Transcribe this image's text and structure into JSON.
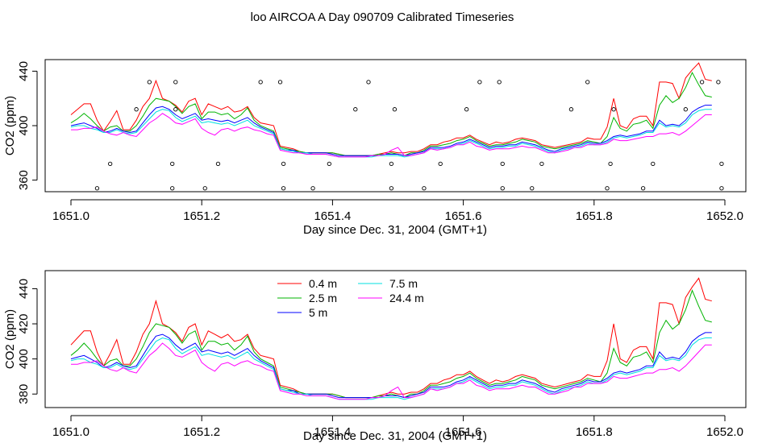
{
  "title": "loo AIRCOA A  Day 090709  Calibrated Timeseries",
  "colors": {
    "0.4 m": "#ff0000",
    "2.5 m": "#00b400",
    "5 m": "#0000ff",
    "7.5 m": "#00e0e0",
    "24.4 m": "#ff00ff"
  },
  "chart_data": [
    {
      "type": "line",
      "xlabel": "Day since Dec. 31, 2004 (GMT+1)",
      "ylabel": "CO2 (ppm)",
      "xlim": [
        1651.0,
        1652.0
      ],
      "ylim": [
        350,
        450
      ],
      "xticks": [
        "1651.0",
        "1651.2",
        "1651.4",
        "1651.6",
        "1651.8",
        "1652.0"
      ],
      "yticks": [
        "360",
        "400",
        "440"
      ],
      "overlay_points": {
        "x": [
          1651.04,
          1651.06,
          1651.1,
          1651.12,
          1651.155,
          1651.155,
          1651.16,
          1651.16,
          1651.205,
          1651.225,
          1651.29,
          1651.32,
          1651.325,
          1651.325,
          1651.37,
          1651.395,
          1651.435,
          1651.455,
          1651.49,
          1651.49,
          1651.495,
          1651.54,
          1651.565,
          1651.605,
          1651.625,
          1651.655,
          1651.66,
          1651.66,
          1651.705,
          1651.72,
          1651.765,
          1651.79,
          1651.82,
          1651.825,
          1651.83,
          1651.875,
          1651.89,
          1651.94,
          1651.965,
          1651.99,
          1651.995,
          1651.995
        ],
        "y": [
          354,
          372,
          412,
          432,
          354,
          372,
          412,
          432,
          354,
          372,
          432,
          432,
          372,
          354,
          354,
          372,
          412,
          432,
          354,
          372,
          412,
          354,
          372,
          412,
          432,
          432,
          372,
          354,
          354,
          372,
          412,
          432,
          354,
          372,
          412,
          354,
          372,
          412,
          432,
          432,
          372,
          354
        ]
      }
    },
    {
      "type": "line",
      "xlabel": "Day since Dec. 31, 2004 (GMT+1)",
      "ylabel": "CO2 (ppm)",
      "xlim": [
        1651.0,
        1652.0
      ],
      "ylim": [
        373,
        450
      ],
      "xticks": [
        "1651.0",
        "1651.2",
        "1651.4",
        "1651.6",
        "1651.8",
        "1652.0"
      ],
      "yticks": [
        "380",
        "400",
        "420",
        "440"
      ],
      "legend": [
        "0.4 m",
        "2.5 m",
        "5 m",
        "7.5 m",
        "24.4 m"
      ],
      "legend_position": "top-center"
    }
  ],
  "series": {
    "x": [
      1651.0,
      1651.01,
      1651.02,
      1651.03,
      1651.04,
      1651.05,
      1651.06,
      1651.07,
      1651.08,
      1651.09,
      1651.1,
      1651.11,
      1651.12,
      1651.13,
      1651.14,
      1651.15,
      1651.16,
      1651.17,
      1651.18,
      1651.19,
      1651.2,
      1651.21,
      1651.22,
      1651.23,
      1651.24,
      1651.25,
      1651.26,
      1651.27,
      1651.28,
      1651.29,
      1651.3,
      1651.31,
      1651.32,
      1651.33,
      1651.34,
      1651.35,
      1651.36,
      1651.37,
      1651.38,
      1651.39,
      1651.4,
      1651.41,
      1651.42,
      1651.43,
      1651.44,
      1651.45,
      1651.46,
      1651.47,
      1651.48,
      1651.49,
      1651.5,
      1651.51,
      1651.52,
      1651.53,
      1651.54,
      1651.55,
      1651.56,
      1651.57,
      1651.58,
      1651.59,
      1651.6,
      1651.61,
      1651.62,
      1651.63,
      1651.64,
      1651.65,
      1651.66,
      1651.67,
      1651.68,
      1651.69,
      1651.7,
      1651.71,
      1651.72,
      1651.73,
      1651.74,
      1651.75,
      1651.76,
      1651.77,
      1651.78,
      1651.79,
      1651.8,
      1651.81,
      1651.82,
      1651.83,
      1651.84,
      1651.85,
      1651.86,
      1651.87,
      1651.88,
      1651.89,
      1651.9,
      1651.91,
      1651.92,
      1651.93,
      1651.94,
      1651.95,
      1651.96,
      1651.97,
      1651.98
    ],
    "values": {
      "0.4 m": [
        408,
        412,
        416,
        416,
        404,
        396,
        403,
        411,
        397,
        397,
        404,
        414,
        420,
        433,
        420,
        418,
        415,
        410,
        418,
        420,
        408,
        416,
        414,
        412,
        414,
        410,
        411,
        414,
        406,
        402,
        401,
        400,
        385,
        384,
        383,
        381,
        380,
        380,
        380,
        380,
        380,
        379,
        378,
        378,
        378,
        378,
        378,
        379,
        380,
        381,
        380,
        380,
        381,
        381,
        383,
        386,
        386,
        388,
        389,
        391,
        391,
        393,
        390,
        388,
        386,
        388,
        387,
        388,
        390,
        391,
        390,
        389,
        386,
        385,
        384,
        385,
        386,
        387,
        388,
        391,
        390,
        390,
        399,
        420,
        400,
        398,
        405,
        407,
        407,
        400,
        432,
        432,
        431,
        420,
        435,
        441,
        446,
        434,
        433
      ],
      "2.5 m": [
        402,
        405,
        409,
        405,
        400,
        396,
        399,
        400,
        396,
        396,
        400,
        407,
        415,
        420,
        419,
        418,
        414,
        409,
        414,
        416,
        405,
        410,
        410,
        408,
        409,
        405,
        408,
        413,
        404,
        400,
        398,
        396,
        384,
        383,
        382,
        381,
        380,
        380,
        380,
        380,
        380,
        379,
        378,
        378,
        378,
        378,
        378,
        379,
        379,
        380,
        379,
        378,
        380,
        380,
        382,
        385,
        385,
        386,
        387,
        389,
        390,
        392,
        389,
        387,
        385,
        386,
        386,
        387,
        388,
        390,
        389,
        388,
        385,
        384,
        383,
        384,
        385,
        386,
        387,
        389,
        388,
        387,
        392,
        406,
        398,
        396,
        401,
        402,
        404,
        398,
        415,
        422,
        417,
        420,
        428,
        439,
        430,
        422,
        421
      ],
      "5 m": [
        400,
        401,
        402,
        400,
        398,
        395,
        396,
        398,
        396,
        395,
        396,
        402,
        408,
        413,
        414,
        412,
        408,
        405,
        407,
        409,
        404,
        405,
        404,
        403,
        404,
        402,
        404,
        406,
        402,
        399,
        397,
        395,
        383,
        382,
        382,
        380,
        380,
        380,
        380,
        380,
        379,
        378,
        378,
        378,
        378,
        378,
        378,
        378,
        379,
        379,
        379,
        378,
        379,
        380,
        381,
        384,
        384,
        384,
        385,
        387,
        388,
        390,
        388,
        386,
        384,
        385,
        385,
        386,
        386,
        388,
        387,
        386,
        384,
        382,
        381,
        383,
        384,
        385,
        386,
        388,
        387,
        387,
        389,
        392,
        393,
        392,
        393,
        394,
        396,
        396,
        404,
        400,
        401,
        400,
        404,
        410,
        413,
        415,
        415
      ],
      "7.5 m": [
        399,
        400,
        400,
        398,
        397,
        395,
        395,
        397,
        395,
        394,
        395,
        400,
        405,
        410,
        412,
        411,
        406,
        403,
        405,
        407,
        402,
        403,
        402,
        401,
        402,
        400,
        402,
        404,
        400,
        398,
        396,
        394,
        383,
        382,
        381,
        380,
        380,
        379,
        379,
        379,
        378,
        377,
        377,
        377,
        377,
        377,
        377,
        378,
        378,
        378,
        378,
        377,
        378,
        379,
        380,
        383,
        383,
        383,
        384,
        386,
        387,
        389,
        387,
        385,
        383,
        384,
        384,
        385,
        385,
        387,
        386,
        385,
        383,
        381,
        380,
        382,
        383,
        384,
        385,
        387,
        386,
        386,
        388,
        391,
        392,
        391,
        392,
        393,
        395,
        395,
        402,
        399,
        400,
        399,
        402,
        408,
        411,
        412,
        412
      ],
      "24.4 m": [
        397,
        397,
        398,
        398,
        399,
        396,
        394,
        393,
        395,
        393,
        392,
        397,
        402,
        405,
        409,
        406,
        402,
        401,
        403,
        405,
        398,
        395,
        393,
        397,
        398,
        396,
        398,
        399,
        397,
        396,
        394,
        393,
        382,
        381,
        380,
        380,
        379,
        379,
        379,
        379,
        378,
        377,
        377,
        377,
        377,
        377,
        378,
        378,
        379,
        382,
        384,
        378,
        378,
        379,
        380,
        383,
        382,
        383,
        384,
        386,
        386,
        388,
        385,
        384,
        382,
        383,
        383,
        383,
        384,
        385,
        384,
        384,
        382,
        380,
        380,
        381,
        382,
        384,
        384,
        386,
        386,
        386,
        387,
        390,
        389,
        389,
        390,
        391,
        392,
        392,
        394,
        394,
        395,
        393,
        396,
        400,
        404,
        408,
        408
      ]
    }
  }
}
